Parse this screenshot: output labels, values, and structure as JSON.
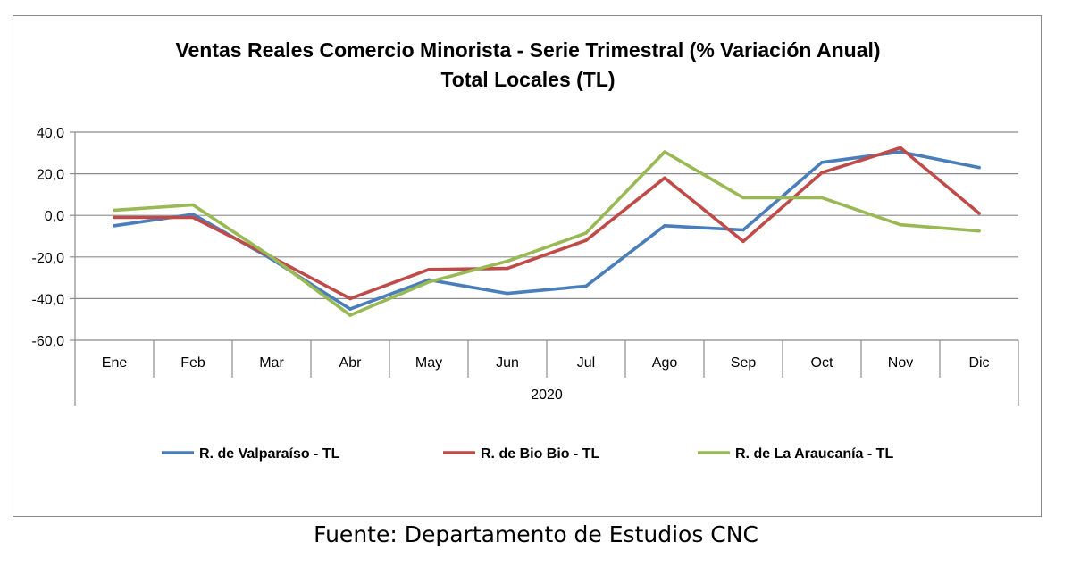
{
  "source_note": "Fuente: Departamento de Estudios CNC",
  "chart_data": {
    "type": "line",
    "title": "Ventas Reales Comercio Minorista - Serie Trimestral (% Variación Anual)",
    "subtitle": "Total Locales (TL)",
    "xlabel": "2020",
    "ylabel": "",
    "categories": [
      "Ene",
      "Feb",
      "Mar",
      "Abr",
      "May",
      "Jun",
      "Jul",
      "Ago",
      "Sep",
      "Oct",
      "Nov",
      "Dic"
    ],
    "ylim": [
      -60,
      40
    ],
    "yticks": [
      40,
      20,
      0,
      -20,
      -40,
      -60
    ],
    "ytick_labels": [
      "40,0",
      "20,0",
      "0,0",
      "-20,0",
      "-40,0",
      "-60,0"
    ],
    "grid": true,
    "legend_position": "bottom",
    "series": [
      {
        "name": "R. de Valparaíso - TL",
        "color": "#4a7ebb",
        "values": [
          -5,
          0.5,
          -21,
          -45,
          -31,
          -37.5,
          -34,
          -5,
          -7,
          25.5,
          30.5,
          23
        ]
      },
      {
        "name": "R. de Bio Bio - TL",
        "color": "#be4b48",
        "values": [
          -1,
          -1,
          -20,
          -40,
          -26,
          -25.5,
          -12,
          18,
          -12.5,
          20.5,
          32.5,
          1
        ]
      },
      {
        "name": "R. de La Araucanía - TL",
        "color": "#98b954",
        "values": [
          2.5,
          5,
          -20,
          -48,
          -32,
          -22,
          -8.5,
          30.5,
          8.5,
          8.5,
          -4.5,
          -7.5
        ]
      }
    ]
  }
}
